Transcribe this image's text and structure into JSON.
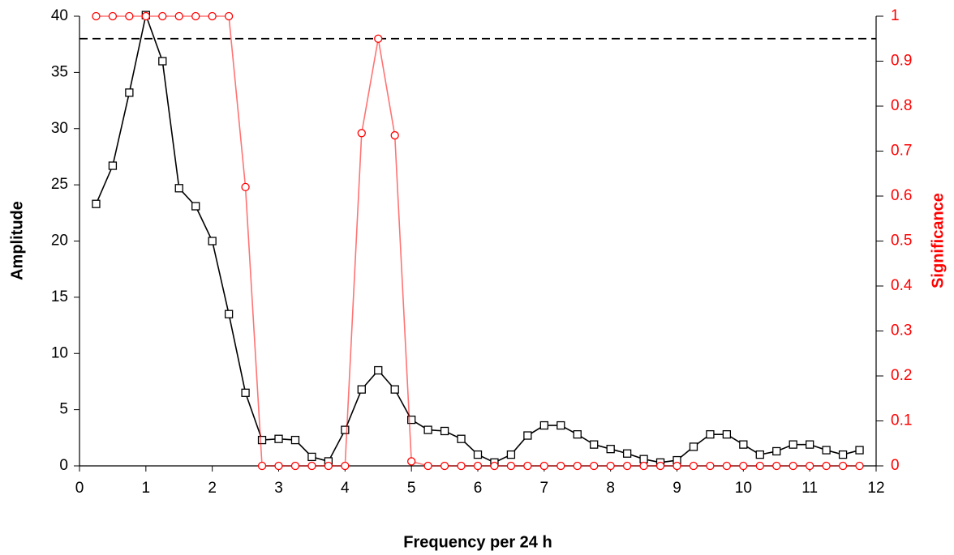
{
  "chart_data": {
    "type": "line",
    "x_label": "Frequency per 24 h",
    "y_label": "Amplitude",
    "y2_label": "Significance",
    "x": [
      0.25,
      0.5,
      0.75,
      1,
      1.25,
      1.5,
      1.75,
      2,
      2.25,
      2.5,
      2.75,
      3,
      3.25,
      3.5,
      3.75,
      4,
      4.25,
      4.5,
      4.75,
      5,
      5.25,
      5.5,
      5.75,
      6,
      6.25,
      6.5,
      6.75,
      7,
      7.25,
      7.5,
      7.75,
      8,
      8.25,
      8.5,
      8.75,
      9,
      9.25,
      9.5,
      9.75,
      10,
      10.25,
      10.5,
      10.75,
      11,
      11.25,
      11.5,
      11.75
    ],
    "series": [
      {
        "name": "Amplitude",
        "color": "#000000",
        "marker": "square",
        "axis": "y",
        "values": [
          23.3,
          26.7,
          33.2,
          40.1,
          36.0,
          24.7,
          23.1,
          20.0,
          13.5,
          6.5,
          2.3,
          2.4,
          2.3,
          0.8,
          0.4,
          3.2,
          6.8,
          8.5,
          6.8,
          4.1,
          3.2,
          3.1,
          2.4,
          1.0,
          0.3,
          1.0,
          2.7,
          3.6,
          3.6,
          2.8,
          1.9,
          1.5,
          1.1,
          0.6,
          0.3,
          0.5,
          1.7,
          2.8,
          2.8,
          1.9,
          1.0,
          1.3,
          1.9,
          1.9,
          1.4,
          1.0,
          1.4
        ]
      },
      {
        "name": "Significance",
        "color": "#ff0000",
        "marker": "circle",
        "axis": "y2",
        "values": [
          1,
          1,
          1,
          1,
          1,
          1,
          1,
          1,
          1,
          0.62,
          0,
          0,
          0,
          0,
          0,
          0,
          0.74,
          0.95,
          0.735,
          0.01,
          0,
          0,
          0,
          0,
          0,
          0,
          0,
          0,
          0,
          0,
          0,
          0,
          0,
          0,
          0,
          0,
          0,
          0,
          0,
          0,
          0,
          0,
          0,
          0,
          0,
          0,
          0
        ]
      }
    ],
    "reference_line": 38,
    "xlim": [
      0,
      12
    ],
    "xticks": [
      0,
      1,
      2,
      3,
      4,
      5,
      6,
      7,
      8,
      9,
      10,
      11,
      12
    ],
    "ylim": [
      0,
      40
    ],
    "yticks": [
      0,
      5,
      10,
      15,
      20,
      25,
      30,
      35,
      40
    ],
    "y2lim": [
      0,
      1
    ],
    "y2ticks": [
      0,
      0.1,
      0.2,
      0.3,
      0.4,
      0.5,
      0.6,
      0.7,
      0.8,
      0.9,
      1
    ]
  }
}
